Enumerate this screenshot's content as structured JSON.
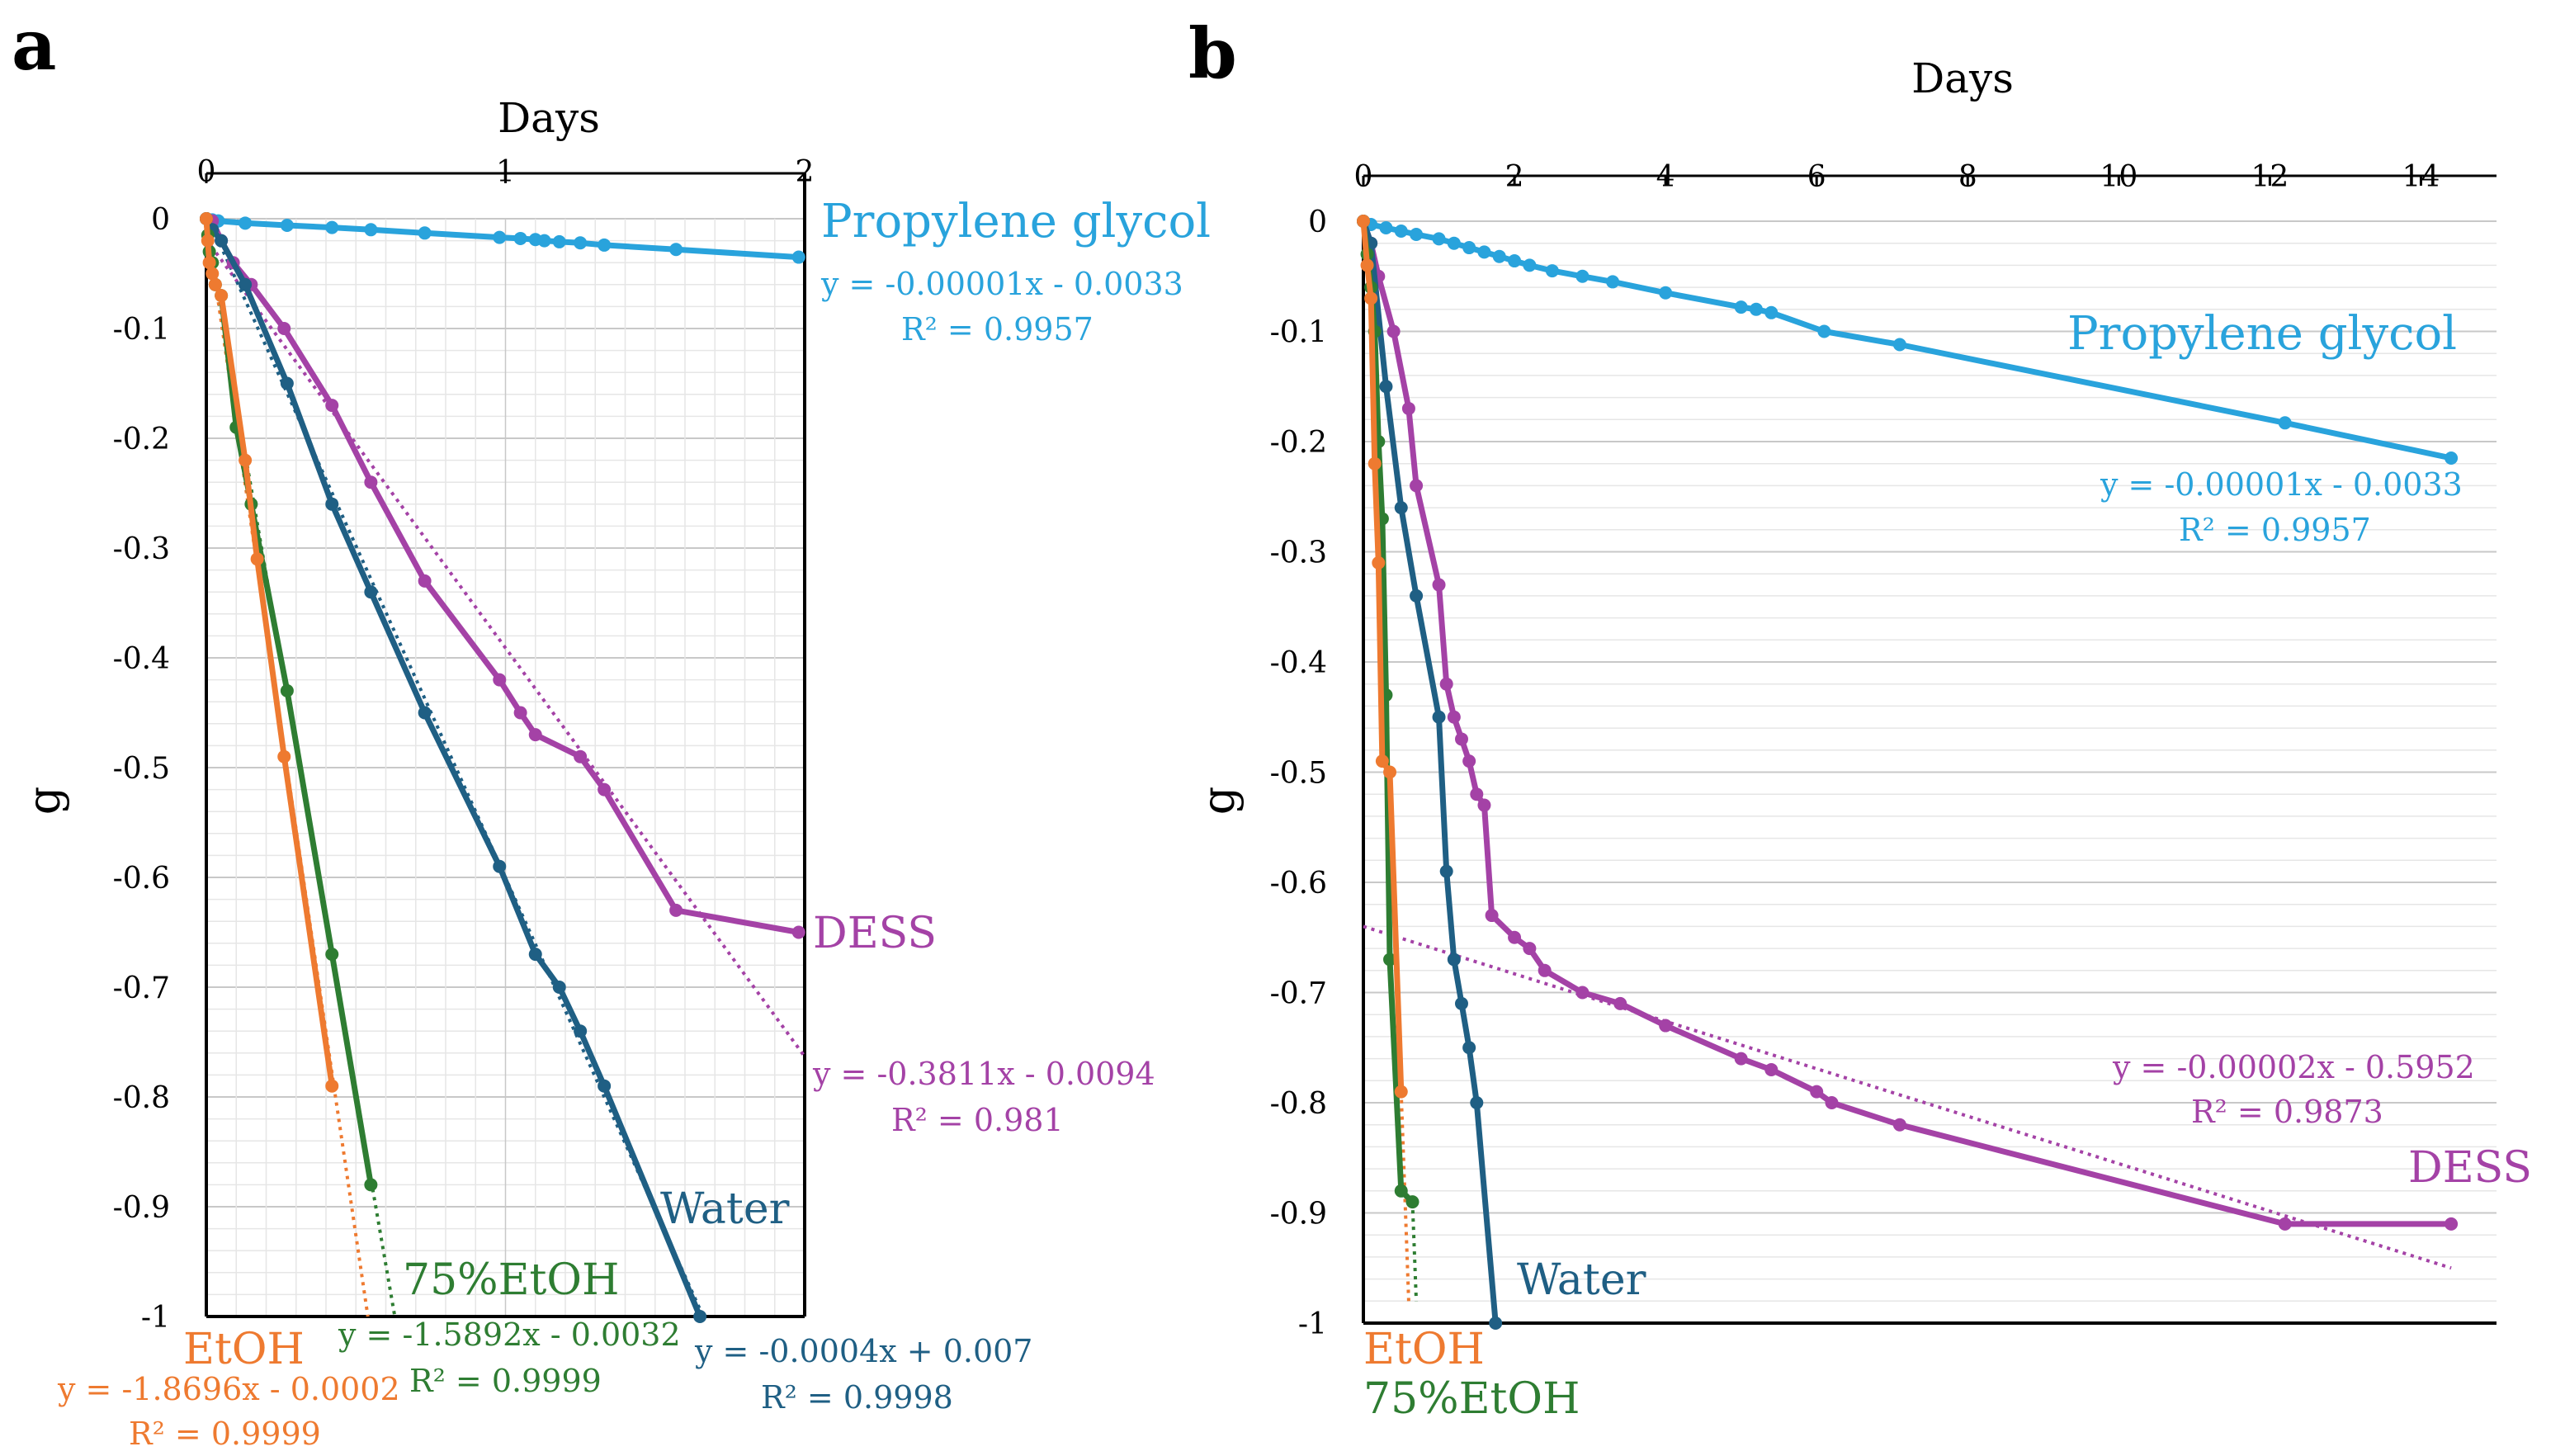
{
  "chart_data": [
    {
      "type": "line",
      "panel_label": "a",
      "xlabel": "Days",
      "ylabel": "g",
      "xlim": [
        0,
        2
      ],
      "ylim": [
        -1,
        0
      ],
      "xticks": [
        "0",
        "1",
        "2"
      ],
      "yticks": [
        "0",
        "-0.1",
        "-0.2",
        "-0.3",
        "-0.4",
        "-0.5",
        "-0.6",
        "-0.7",
        "-0.8",
        "-0.9",
        "-1"
      ],
      "series": [
        {
          "name": "Propylene glycol",
          "color": "#29a3dc",
          "x": [
            0,
            0.02,
            0.04,
            0.13,
            0.27,
            0.42,
            0.55,
            0.73,
            0.98,
            1.05,
            1.1,
            1.13,
            1.18,
            1.25,
            1.33,
            1.57,
            1.98
          ],
          "y": [
            0,
            -0.001,
            -0.002,
            -0.004,
            -0.006,
            -0.008,
            -0.01,
            -0.013,
            -0.017,
            -0.018,
            -0.019,
            -0.02,
            -0.021,
            -0.022,
            -0.024,
            -0.028,
            -0.035
          ],
          "equation": "y = -0.00001x - 0.0033",
          "r2": "R² = 0.9957"
        },
        {
          "name": "DESS",
          "color": "#a442a6",
          "x": [
            0,
            0.02,
            0.05,
            0.09,
            0.15,
            0.26,
            0.42,
            0.55,
            0.73,
            0.98,
            1.05,
            1.1,
            1.25,
            1.33,
            1.57,
            1.98
          ],
          "y": [
            0,
            -0.002,
            -0.02,
            -0.04,
            -0.06,
            -0.1,
            -0.17,
            -0.24,
            -0.33,
            -0.42,
            -0.45,
            -0.47,
            -0.49,
            -0.52,
            -0.63,
            -0.65
          ],
          "equation": "y = -0.3811x - 0.0094",
          "r2": "R² = 0.981",
          "trend_x": [
            0,
            2
          ]
        },
        {
          "name": "Water",
          "color": "#1f5f84",
          "x": [
            0,
            0.02,
            0.05,
            0.13,
            0.27,
            0.42,
            0.55,
            0.73,
            0.98,
            1.1,
            1.18,
            1.25,
            1.33,
            1.65
          ],
          "y": [
            0,
            -0.01,
            -0.02,
            -0.06,
            -0.15,
            -0.26,
            -0.34,
            -0.45,
            -0.59,
            -0.67,
            -0.7,
            -0.74,
            -0.79,
            -1
          ],
          "equation": "y = -0.0004x + 0.007",
          "r2": "R² = 0.9998",
          "trend_x": [
            0,
            1.65
          ]
        },
        {
          "name": "75%EtOH",
          "color": "#2e7d32",
          "x": [
            0,
            0.005,
            0.01,
            0.02,
            0.03,
            0.05,
            0.1,
            0.15,
            0.27,
            0.42,
            0.55
          ],
          "y": [
            0,
            -0.015,
            -0.03,
            -0.04,
            -0.06,
            -0.07,
            -0.19,
            -0.26,
            -0.43,
            -0.67,
            -0.88
          ],
          "equation": "y = -1.5892x - 0.0032",
          "r2": "R² = 0.9999",
          "trend_x": [
            0,
            0.63
          ]
        },
        {
          "name": "EtOH",
          "color": "#ee7a30",
          "x": [
            0,
            0.005,
            0.01,
            0.02,
            0.03,
            0.05,
            0.13,
            0.17,
            0.26,
            0.42
          ],
          "y": [
            0,
            -0.02,
            -0.04,
            -0.05,
            -0.06,
            -0.07,
            -0.22,
            -0.31,
            -0.49,
            -0.79
          ],
          "equation": "y = -1.8696x - 0.0002",
          "r2": "R² = 0.9999",
          "trend_x": [
            0,
            0.54
          ]
        }
      ]
    },
    {
      "type": "line",
      "panel_label": "b",
      "xlabel": "Days",
      "ylabel": "g",
      "xlim": [
        0,
        15
      ],
      "ylim": [
        -1,
        0
      ],
      "xticks": [
        "0",
        "2",
        "4",
        "6",
        "8",
        "10",
        "12",
        "14"
      ],
      "yticks": [
        "0",
        "-0.1",
        "-0.2",
        "-0.3",
        "-0.4",
        "-0.5",
        "-0.6",
        "-0.7",
        "-0.8",
        "-0.9",
        "-1"
      ],
      "series": [
        {
          "name": "Propylene glycol",
          "color": "#29a3dc",
          "x": [
            0,
            0.1,
            0.3,
            0.5,
            0.7,
            1.0,
            1.2,
            1.4,
            1.6,
            1.8,
            2.0,
            2.2,
            2.5,
            2.9,
            3.3,
            4.0,
            5.0,
            5.2,
            5.4,
            6.1,
            7.1,
            12.2,
            14.4
          ],
          "y": [
            0,
            -0.003,
            -0.006,
            -0.009,
            -0.012,
            -0.016,
            -0.02,
            -0.024,
            -0.028,
            -0.032,
            -0.036,
            -0.04,
            -0.045,
            -0.05,
            -0.055,
            -0.065,
            -0.078,
            -0.08,
            -0.083,
            -0.1,
            -0.112,
            -0.183,
            -0.215
          ],
          "equation": "y = -0.00001x - 0.0033",
          "r2": "R² = 0.9957"
        },
        {
          "name": "DESS",
          "color": "#a442a6",
          "x": [
            0,
            0.1,
            0.2,
            0.4,
            0.6,
            0.7,
            1.0,
            1.1,
            1.2,
            1.3,
            1.4,
            1.5,
            1.6,
            1.7,
            2.0,
            2.2,
            2.4,
            2.9,
            3.4,
            4.0,
            5.0,
            5.4,
            6.0,
            6.2,
            7.1,
            12.2,
            14.4
          ],
          "y": [
            0,
            -0.02,
            -0.05,
            -0.1,
            -0.17,
            -0.24,
            -0.33,
            -0.42,
            -0.45,
            -0.47,
            -0.49,
            -0.52,
            -0.53,
            -0.63,
            -0.65,
            -0.66,
            -0.68,
            -0.7,
            -0.71,
            -0.73,
            -0.76,
            -0.77,
            -0.79,
            -0.8,
            -0.82,
            -0.91,
            -0.91
          ],
          "equation": "y = -0.00002x - 0.5952",
          "r2": "R² = 0.9873",
          "trend_x": [
            0,
            14.4
          ],
          "trend_y": [
            -0.64,
            -0.95
          ]
        },
        {
          "name": "Water",
          "color": "#1f5f84",
          "x": [
            0,
            0.1,
            0.3,
            0.5,
            0.7,
            1.0,
            1.1,
            1.2,
            1.3,
            1.4,
            1.5,
            1.75
          ],
          "y": [
            0,
            -0.02,
            -0.15,
            -0.26,
            -0.34,
            -0.45,
            -0.59,
            -0.67,
            -0.71,
            -0.75,
            -0.8,
            -1
          ],
          "equation": "",
          "r2": ""
        },
        {
          "name": "75%EtOH",
          "color": "#2e7d32",
          "x": [
            0,
            0.05,
            0.1,
            0.15,
            0.2,
            0.25,
            0.3,
            0.35,
            0.5,
            0.65
          ],
          "y": [
            0,
            -0.03,
            -0.06,
            -0.1,
            -0.2,
            -0.27,
            -0.43,
            -0.67,
            -0.88,
            -0.89
          ],
          "equation": "",
          "r2": "",
          "trend_x": [
            0.65,
            0.7
          ],
          "trend_y": [
            -0.89,
            -0.98
          ]
        },
        {
          "name": "EtOH",
          "color": "#ee7a30",
          "x": [
            0,
            0.05,
            0.1,
            0.15,
            0.2,
            0.25,
            0.35,
            0.5
          ],
          "y": [
            0,
            -0.04,
            -0.07,
            -0.22,
            -0.31,
            -0.49,
            -0.5,
            -0.79
          ],
          "equation": "",
          "r2": "",
          "trend_x": [
            0.5,
            0.6
          ],
          "trend_y": [
            -0.79,
            -0.98
          ]
        }
      ]
    }
  ]
}
